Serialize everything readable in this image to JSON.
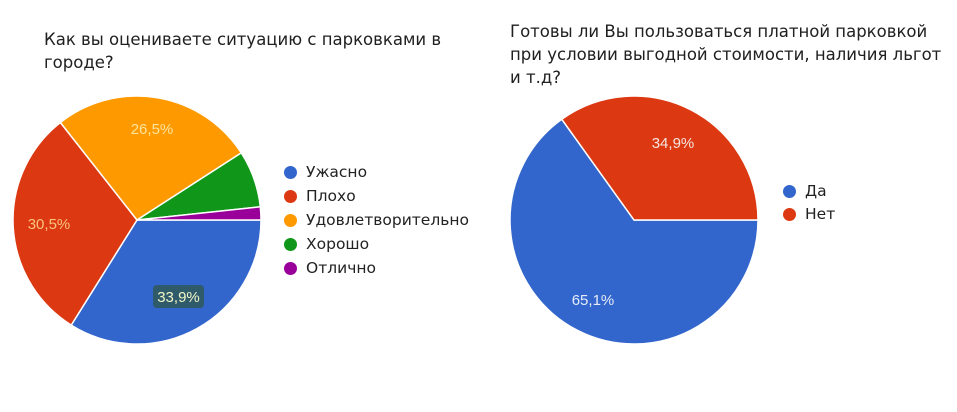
{
  "colors": {
    "blue": "#3366cc",
    "red": "#dc3912",
    "orange": "#ff9900",
    "green": "#109618",
    "purple": "#990099"
  },
  "chart_data": [
    {
      "type": "pie",
      "title": "Как вы оцениваете ситуацию с парковками в городе?",
      "categories": [
        "Ужасно",
        "Плохо",
        "Удовлетворительно",
        "Хорошо",
        "Отлично"
      ],
      "values": [
        33.9,
        30.5,
        26.5,
        7.4,
        1.7
      ],
      "value_labels": [
        "33,9%",
        "30,5%",
        "26,5%",
        "",
        ""
      ],
      "colors": [
        "#3366cc",
        "#dc3912",
        "#ff9900",
        "#109618",
        "#990099"
      ],
      "legend_position": "right",
      "unit": "%"
    },
    {
      "type": "pie",
      "title": "Готовы ли Вы пользоваться платной парковкой при условии выгодной стоимости, наличия льгот и т.д?",
      "categories": [
        "Да",
        "Нет"
      ],
      "values": [
        65.1,
        34.9
      ],
      "value_labels": [
        "65,1%",
        "34,9%"
      ],
      "colors": [
        "#3366cc",
        "#dc3912"
      ],
      "legend_position": "right",
      "unit": "%"
    }
  ],
  "left": {
    "title": "Как вы оцениваете ситуацию с парковками в городе?",
    "legend": [
      {
        "label": "Ужасно",
        "color": "#3366cc"
      },
      {
        "label": "Плохо",
        "color": "#dc3912"
      },
      {
        "label": "Удовлетворительно",
        "color": "#ff9900"
      },
      {
        "label": "Хорошо",
        "color": "#109618"
      },
      {
        "label": "Отлично",
        "color": "#990099"
      }
    ],
    "labels": {
      "uzhasno": "33,9%",
      "plokho": "30,5%",
      "udovl": "26,5%"
    }
  },
  "right": {
    "title": "Готовы ли Вы пользоваться платной парковкой при условии выгодной стоимости, наличия льгот и т.д?",
    "legend": [
      {
        "label": "Да",
        "color": "#3366cc"
      },
      {
        "label": "Нет",
        "color": "#dc3912"
      }
    ],
    "labels": {
      "da": "65,1%",
      "net": "34,9%"
    }
  }
}
